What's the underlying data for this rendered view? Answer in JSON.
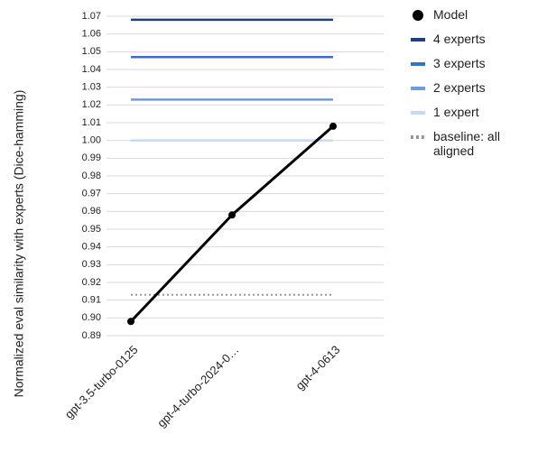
{
  "chart_data": {
    "type": "line",
    "y_label": "Normalized eval similarity with experts (Dice-hamming)",
    "categories": [
      "gpt-3.5-turbo-0125",
      "gpt-4-turbo-2024-0…",
      "gpt-4-0613"
    ],
    "series": [
      {
        "name": "Model",
        "color": "#000000",
        "values": [
          0.898,
          0.958,
          1.008
        ]
      },
      {
        "name": "4 experts",
        "color": "#1f3f7a",
        "values": [
          1.068,
          1.068,
          1.068
        ]
      },
      {
        "name": "3 experts",
        "color": "#3a6fc4",
        "values": [
          1.047,
          1.047,
          1.047
        ]
      },
      {
        "name": "2 experts",
        "color": "#6f9ae0",
        "values": [
          1.023,
          1.023,
          1.023
        ]
      },
      {
        "name": "1 expert",
        "color": "#c6d9f2",
        "values": [
          1.0,
          1.0,
          1.0
        ]
      },
      {
        "name": "baseline: all aligned",
        "color": "#999999",
        "dashed": true,
        "values": [
          0.913,
          0.913,
          0.913
        ]
      }
    ],
    "ylim": [
      0.89,
      1.07
    ],
    "yticks": [
      {
        "value": 0.89,
        "label": "0.89"
      },
      {
        "value": 0.9,
        "label": "0.90"
      },
      0.91,
      0.92,
      0.93,
      0.94,
      0.95,
      0.96,
      0.97,
      0.98,
      0.99,
      {
        "value": 1.0,
        "label": "1.00"
      },
      1.01,
      1.02,
      1.03,
      1.04,
      1.05,
      1.06,
      1.07
    ],
    "grid": true
  }
}
